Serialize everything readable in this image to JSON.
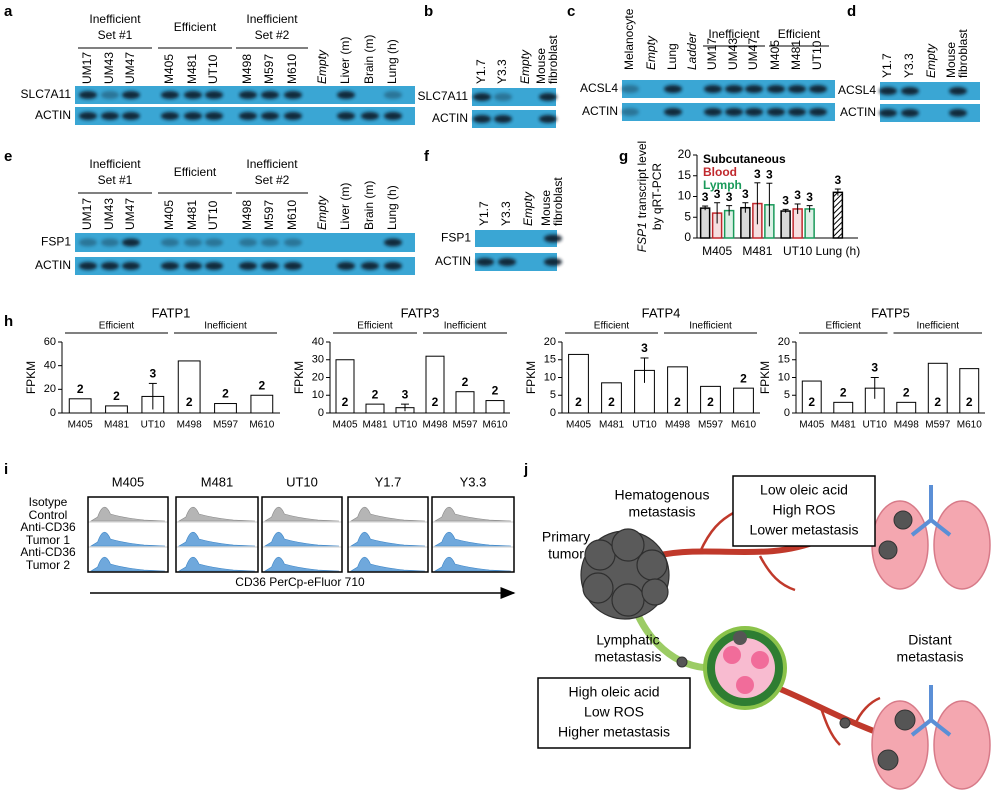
{
  "panel_labels": [
    "a",
    "b",
    "c",
    "d",
    "e",
    "f",
    "g",
    "h",
    "i",
    "j"
  ],
  "blots": {
    "a": {
      "groups": [
        [
          "Inefficient",
          "Set #1"
        ],
        "Efficient",
        [
          "Inefficient",
          "Set #2"
        ]
      ],
      "lanes": [
        "UM17",
        "UM43",
        "UM47",
        "M405",
        "M481",
        "UT10",
        "M498",
        "M597",
        "M610",
        "Empty",
        "Liver (m)",
        "Brain (m)",
        "Lung (h)"
      ],
      "italic_lanes": [
        9
      ],
      "rows": [
        "SLC7A11",
        "ACTIN"
      ]
    },
    "b": {
      "lanes": [
        "Y1.7",
        "Y3.3",
        "Empty",
        [
          "Mouse",
          "fibroblast"
        ]
      ],
      "italic_lanes": [
        2
      ],
      "rows": [
        "SLC7A11",
        "ACTIN"
      ]
    },
    "c": {
      "groups": [
        "Inefficient",
        "Efficient"
      ],
      "lanes": [
        "Melanocyte",
        "Empty",
        "Lung",
        "Ladder",
        "UM17",
        "UM43",
        "UM47",
        "M405",
        "M481",
        "UT10"
      ],
      "italic_lanes": [
        1,
        3
      ],
      "rows": [
        "ACSL4",
        "ACTIN"
      ]
    },
    "d": {
      "lanes": [
        "Y1.7",
        "Y3.3",
        "Empty",
        [
          "Mouse",
          "fibroblast"
        ]
      ],
      "italic_lanes": [
        2
      ],
      "rows": [
        "ACSL4",
        "ACTIN"
      ]
    },
    "e": {
      "groups": [
        [
          "Inefficient",
          "Set #1"
        ],
        "Efficient",
        [
          "Inefficient",
          "Set #2"
        ]
      ],
      "lanes": [
        "UM17",
        "UM43",
        "UM47",
        "M405",
        "M481",
        "UT10",
        "M498",
        "M597",
        "M610",
        "Empty",
        "Liver (m)",
        "Brain (m)",
        "Lung (h)"
      ],
      "italic_lanes": [
        9
      ],
      "rows": [
        "FSP1",
        "ACTIN"
      ]
    },
    "f": {
      "lanes": [
        "Y1.7",
        "Y3.3",
        "Empty",
        [
          "Mouse",
          "fibroblast"
        ]
      ],
      "italic_lanes": [
        2
      ],
      "rows": [
        "FSP1",
        "ACTIN"
      ]
    }
  },
  "chart_data": [
    {
      "type": "grouped_bar",
      "ylabel": {
        "gene": "FSP1",
        "text": "transcript level",
        "line2": "by qRT-PCR"
      },
      "categories": [
        "M405",
        "M481",
        "UT10",
        "Lung (h)"
      ],
      "series": [
        {
          "name": "Subcutaneous",
          "color": "#000000",
          "values": [
            7.2,
            7.3,
            6.5,
            11
          ],
          "errors": [
            0.5,
            1.2,
            0.4,
            0.8
          ],
          "n_labels": [
            3,
            3,
            3,
            3
          ]
        },
        {
          "name": "Blood",
          "color": "#c0282d",
          "values": [
            6,
            8.3,
            7,
            null
          ],
          "errors": [
            2.5,
            5,
            1.2,
            null
          ],
          "n_labels": [
            3,
            3,
            3,
            null
          ]
        },
        {
          "name": "Lymph",
          "color": "#1a9a5a",
          "values": [
            6.6,
            8,
            7,
            null
          ],
          "errors": [
            1.2,
            5.2,
            0.8,
            null
          ],
          "n_labels": [
            3,
            3,
            3,
            null
          ]
        }
      ],
      "ylim": [
        0,
        20
      ],
      "yticks": [
        0,
        5,
        10,
        15,
        20
      ]
    },
    {
      "type": "bar",
      "title": "FATP1",
      "groups": [
        "Efficient",
        "Inefficient"
      ],
      "ylabel": "FPKM",
      "categories": [
        "M405",
        "M481",
        "UT10",
        "M498",
        "M597",
        "M610"
      ],
      "values": [
        12,
        6,
        14,
        44,
        8,
        15
      ],
      "errors": [
        null,
        null,
        11,
        null,
        null,
        null
      ],
      "n_labels": [
        2,
        2,
        3,
        2,
        2,
        2
      ],
      "ylim": [
        0,
        60
      ],
      "yticks": [
        0,
        20,
        40,
        60
      ],
      "color": "#000000"
    },
    {
      "type": "bar",
      "title": "FATP3",
      "groups": [
        "Efficient",
        "Inefficient"
      ],
      "ylabel": "FPKM",
      "categories": [
        "M405",
        "M481",
        "UT10",
        "M498",
        "M597",
        "M610"
      ],
      "values": [
        30,
        5,
        3,
        32,
        12,
        7
      ],
      "errors": [
        null,
        null,
        2,
        null,
        null,
        null
      ],
      "n_labels": [
        2,
        2,
        3,
        2,
        2,
        2
      ],
      "ylim": [
        0,
        40
      ],
      "yticks": [
        0,
        10,
        20,
        30,
        40
      ],
      "color": "#000000"
    },
    {
      "type": "bar",
      "title": "FATP4",
      "groups": [
        "Efficient",
        "Inefficient"
      ],
      "ylabel": "FPKM",
      "categories": [
        "M405",
        "M481",
        "UT10",
        "M498",
        "M597",
        "M610"
      ],
      "values": [
        16.5,
        8.5,
        12,
        13,
        7.5,
        7
      ],
      "errors": [
        null,
        null,
        3.5,
        null,
        null,
        null
      ],
      "n_labels": [
        2,
        2,
        3,
        2,
        2,
        2
      ],
      "ylim": [
        0,
        20
      ],
      "yticks": [
        0,
        5,
        10,
        15,
        20
      ],
      "color": "#000000"
    },
    {
      "type": "bar",
      "title": "FATP5",
      "groups": [
        "Efficient",
        "Inefficient"
      ],
      "ylabel": "FPKM",
      "categories": [
        "M405",
        "M481",
        "UT10",
        "M498",
        "M597",
        "M610"
      ],
      "values": [
        9,
        3,
        7,
        3,
        14,
        12.5
      ],
      "errors": [
        null,
        null,
        3,
        null,
        null,
        null
      ],
      "n_labels": [
        2,
        2,
        3,
        2,
        2,
        2
      ],
      "ylim": [
        0,
        20
      ],
      "yticks": [
        0,
        5,
        10,
        15,
        20
      ],
      "color": "#000000"
    }
  ],
  "flow": {
    "columns": [
      "M405",
      "M481",
      "UT10",
      "Y1.7",
      "Y3.3"
    ],
    "rows": [
      [
        "Isotype",
        "Control"
      ],
      [
        "Anti-CD36",
        "Tumor 1"
      ],
      [
        "Anti-CD36",
        "Tumor 2"
      ]
    ],
    "xlabel": "CD36 PerCp-eFluor 710"
  },
  "diagram": {
    "boxes": [
      [
        "Low oleic acid",
        "High ROS",
        "Lower metastasis"
      ],
      [
        "High oleic acid",
        "Low ROS",
        "Higher metastasis"
      ]
    ],
    "labels": [
      [
        "Hematogenous",
        "metastasis"
      ],
      [
        "Primary",
        "tumor"
      ],
      [
        "Lymphatic",
        "metastasis"
      ],
      [
        "Distant",
        "metastasis"
      ]
    ]
  }
}
